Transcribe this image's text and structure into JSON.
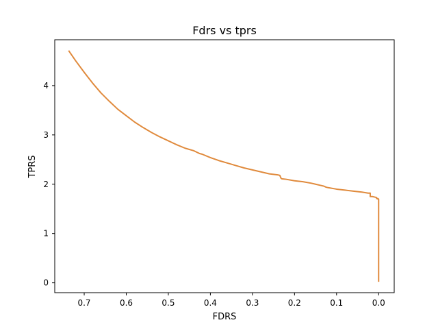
{
  "chart_data": {
    "type": "line",
    "title": "Fdrs vs tprs",
    "xlabel": "FDRS",
    "ylabel": "TPRS",
    "xlim": [
      0.77,
      -0.037
    ],
    "ylim": [
      -0.2,
      4.93
    ],
    "x_inverted": true,
    "grid": false,
    "x_ticks": [
      {
        "value": 0.7,
        "label": "0.7"
      },
      {
        "value": 0.6,
        "label": "0.6"
      },
      {
        "value": 0.5,
        "label": "0.5"
      },
      {
        "value": 0.4,
        "label": "0.4"
      },
      {
        "value": 0.3,
        "label": "0.3"
      },
      {
        "value": 0.2,
        "label": "0.2"
      },
      {
        "value": 0.1,
        "label": "0.1"
      },
      {
        "value": 0.0,
        "label": "0.0"
      }
    ],
    "y_ticks": [
      {
        "value": 0,
        "label": "0"
      },
      {
        "value": 1,
        "label": "1"
      },
      {
        "value": 2,
        "label": "2"
      },
      {
        "value": 3,
        "label": "3"
      },
      {
        "value": 4,
        "label": "4"
      }
    ],
    "series": [
      {
        "color": "#e08a3c",
        "x": [
          0.737,
          0.72,
          0.7,
          0.68,
          0.66,
          0.64,
          0.62,
          0.6,
          0.58,
          0.56,
          0.54,
          0.52,
          0.5,
          0.48,
          0.46,
          0.44,
          0.435,
          0.43,
          0.425,
          0.42,
          0.4,
          0.38,
          0.36,
          0.34,
          0.32,
          0.3,
          0.28,
          0.26,
          0.24,
          0.235,
          0.232,
          0.23,
          0.22,
          0.2,
          0.18,
          0.16,
          0.15,
          0.14,
          0.13,
          0.125,
          0.12,
          0.1,
          0.08,
          0.06,
          0.04,
          0.025,
          0.02,
          0.02,
          0.015,
          0.01,
          0.005,
          0.005,
          0.002,
          0.002,
          0.0,
          0.0
        ],
        "y": [
          4.71,
          4.5,
          4.27,
          4.05,
          3.85,
          3.68,
          3.52,
          3.39,
          3.26,
          3.15,
          3.05,
          2.96,
          2.88,
          2.8,
          2.73,
          2.68,
          2.66,
          2.64,
          2.62,
          2.61,
          2.54,
          2.48,
          2.43,
          2.38,
          2.33,
          2.29,
          2.25,
          2.21,
          2.19,
          2.18,
          2.12,
          2.11,
          2.1,
          2.07,
          2.05,
          2.02,
          2.0,
          1.98,
          1.96,
          1.94,
          1.93,
          1.9,
          1.88,
          1.86,
          1.84,
          1.82,
          1.82,
          1.75,
          1.75,
          1.74,
          1.73,
          1.71,
          1.71,
          1.7,
          1.7,
          0.02
        ]
      }
    ]
  }
}
